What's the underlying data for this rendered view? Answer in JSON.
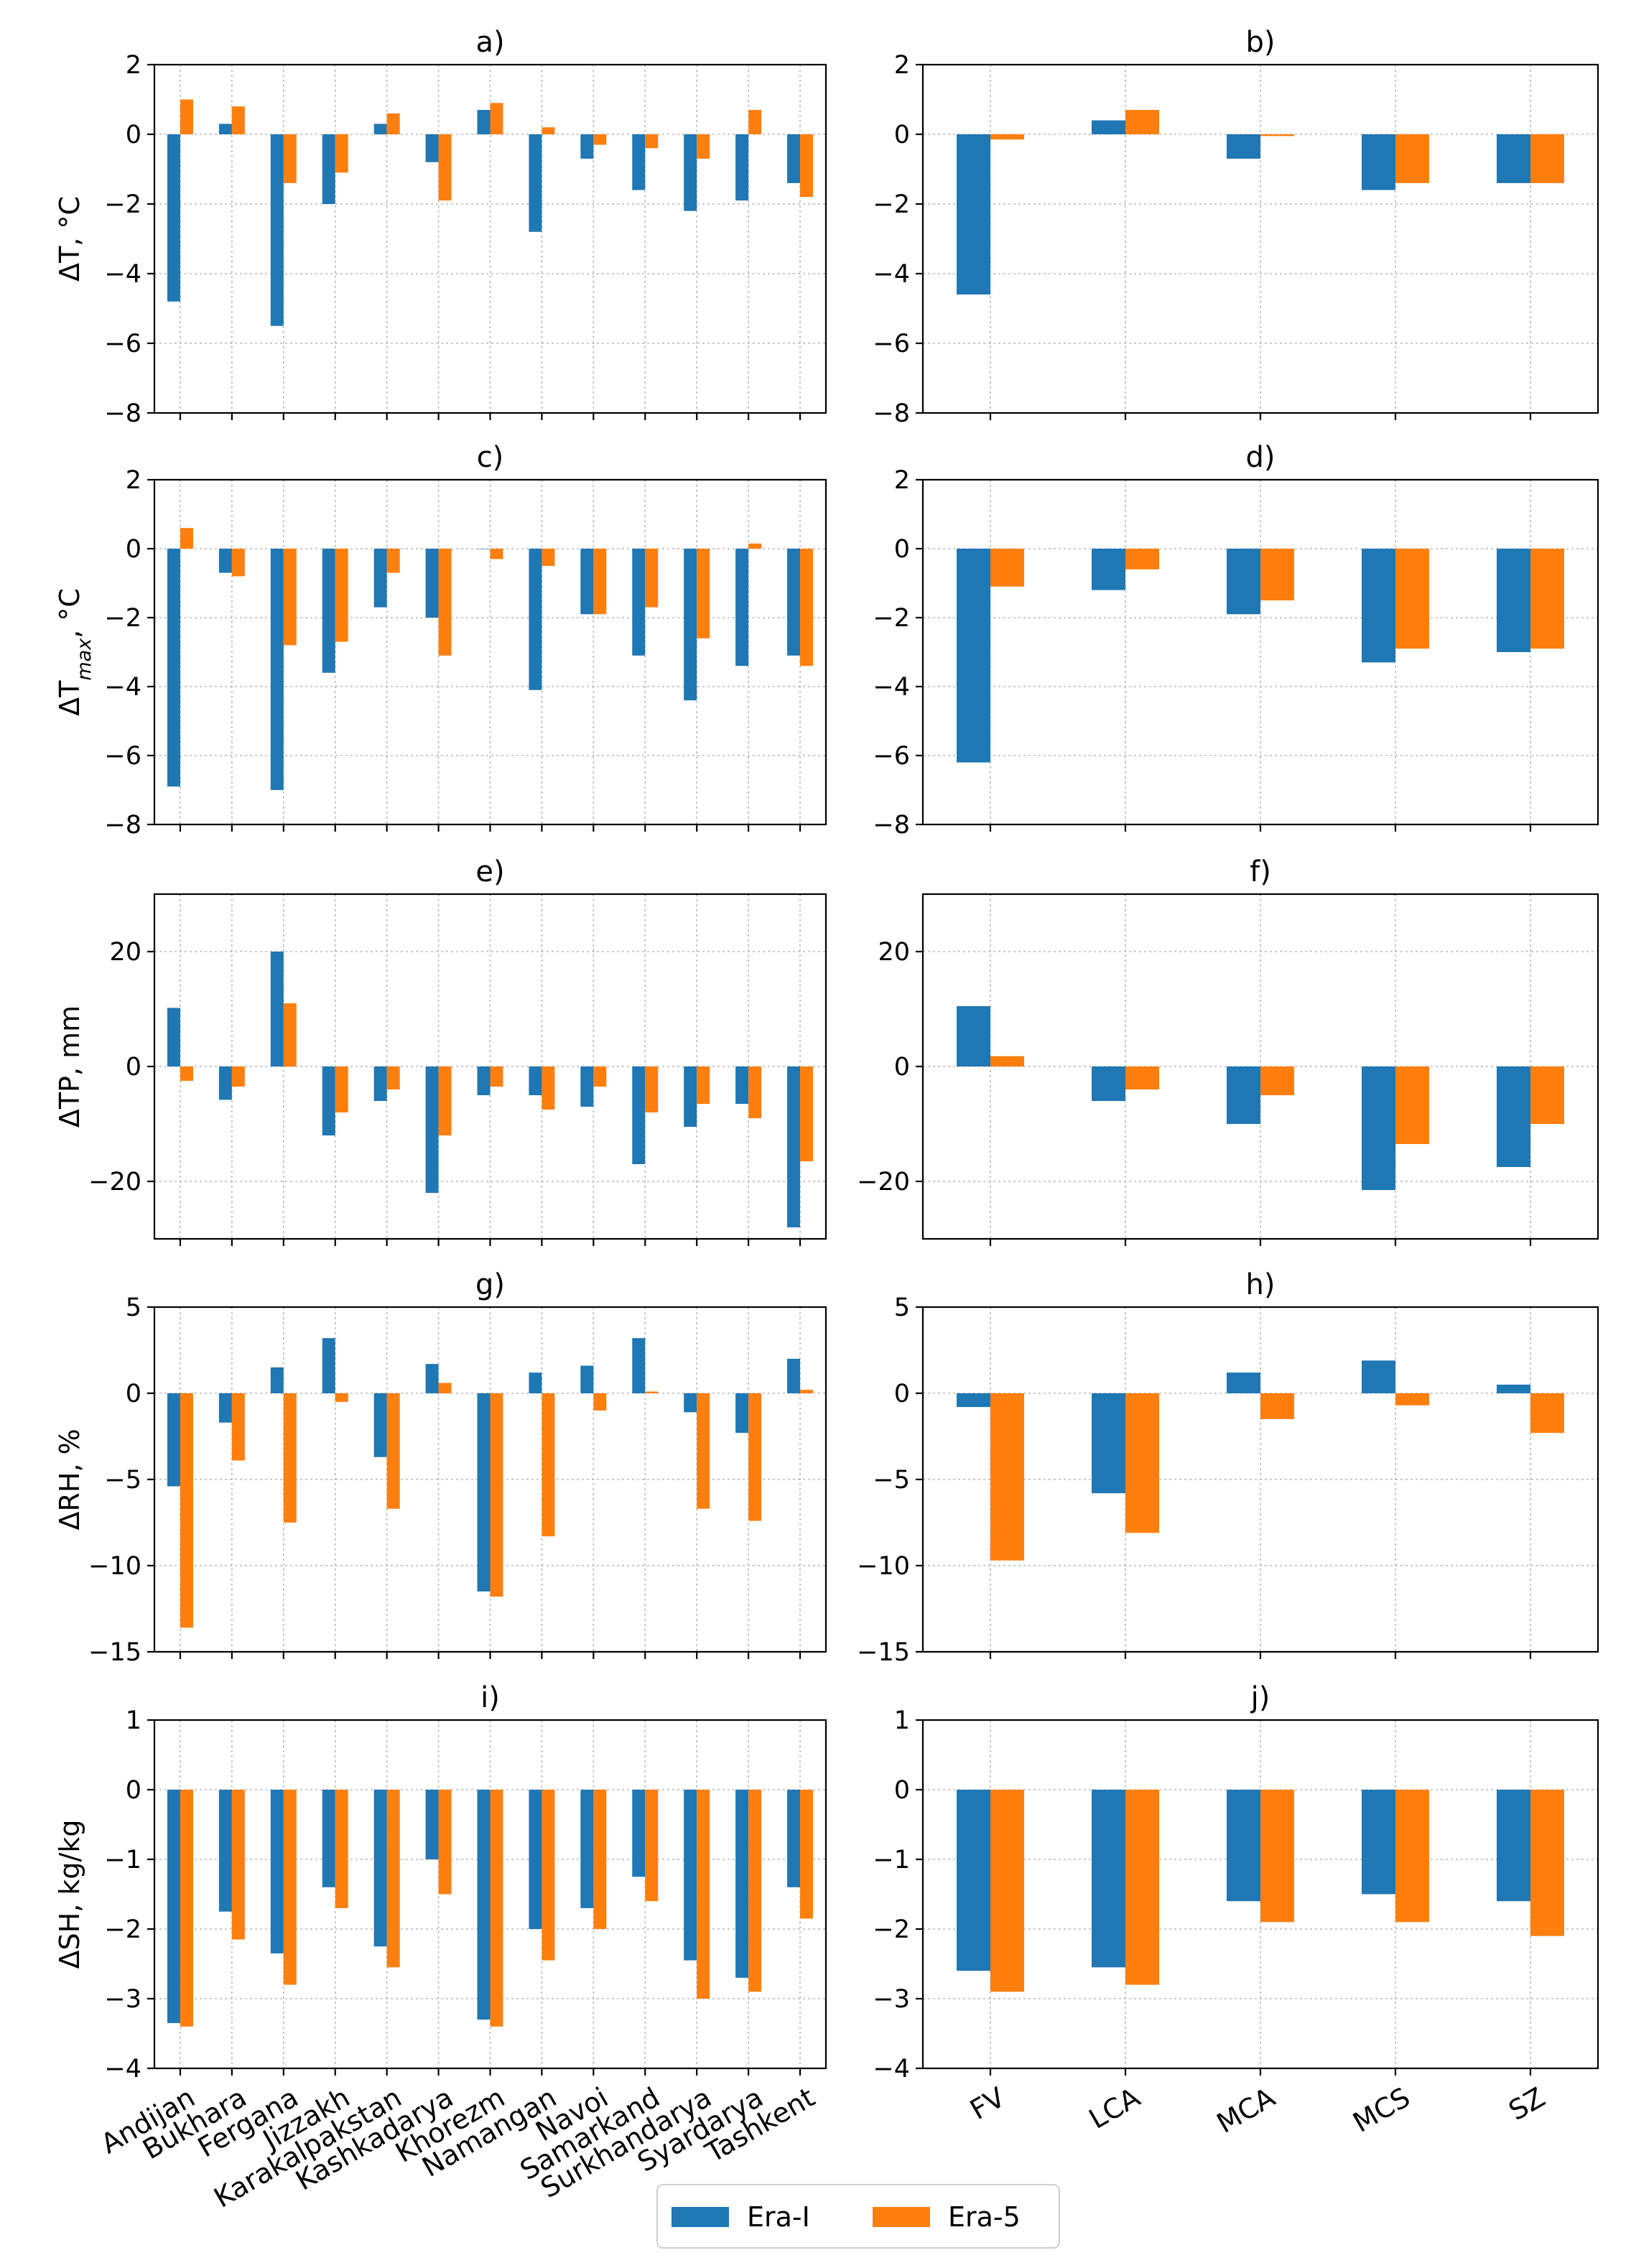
{
  "colors": {
    "era_i": "#1f77b4",
    "era_5": "#ff7f0e"
  },
  "legend": {
    "era_i_label": "Era-I",
    "era_5_label": "Era-5"
  },
  "chart_data": [
    {
      "id": "a",
      "title": "a)",
      "type": "bar",
      "ylabel": "ΔT, °C",
      "ylabel_sub": "",
      "ylim": [
        -8,
        2
      ],
      "yticks": [
        2,
        0,
        -2,
        -4,
        -6,
        -8
      ],
      "categories": [
        "Andijan",
        "Bukhara",
        "Fergana",
        "Jizzakh",
        "Karakalpakstan",
        "Kashkadarya",
        "Khorezm",
        "Namangan",
        "Navoi",
        "Samarkand",
        "Surkhandarya",
        "Syardarya",
        "Tashkent"
      ],
      "show_xlabels": false,
      "series": [
        {
          "name": "Era-I",
          "values": [
            -4.8,
            0.3,
            -5.5,
            -2.0,
            0.3,
            -0.8,
            0.7,
            -2.8,
            -0.7,
            -1.6,
            -2.2,
            -1.9,
            -1.4
          ]
        },
        {
          "name": "Era-5",
          "values": [
            1.0,
            0.8,
            -1.4,
            -1.1,
            0.6,
            -1.9,
            0.9,
            0.2,
            -0.3,
            -0.4,
            -0.7,
            0.7,
            -1.8
          ]
        }
      ]
    },
    {
      "id": "b",
      "title": "b)",
      "type": "bar",
      "ylabel": "",
      "ylabel_sub": "",
      "ylim": [
        -8,
        2
      ],
      "yticks": [
        2,
        0,
        -2,
        -4,
        -6,
        -8
      ],
      "categories": [
        "FV",
        "LCA",
        "MCA",
        "MCS",
        "SZ"
      ],
      "show_xlabels": false,
      "series": [
        {
          "name": "Era-I",
          "values": [
            -4.6,
            0.4,
            -0.7,
            -1.6,
            -1.4
          ]
        },
        {
          "name": "Era-5",
          "values": [
            -0.15,
            0.7,
            -0.05,
            -1.4,
            -1.4
          ]
        }
      ]
    },
    {
      "id": "c",
      "title": "c)",
      "type": "bar",
      "ylabel": "ΔT",
      "ylabel_sub": "max",
      "ylabel_suffix": ", °C",
      "ylim": [
        -8,
        2
      ],
      "yticks": [
        2,
        0,
        -2,
        -4,
        -6,
        -8
      ],
      "categories": [
        "Andijan",
        "Bukhara",
        "Fergana",
        "Jizzakh",
        "Karakalpakstan",
        "Kashkadarya",
        "Khorezm",
        "Namangan",
        "Navoi",
        "Samarkand",
        "Surkhandarya",
        "Syardarya",
        "Tashkent"
      ],
      "show_xlabels": false,
      "series": [
        {
          "name": "Era-I",
          "values": [
            -6.9,
            -0.7,
            -7.0,
            -3.6,
            -1.7,
            -2.0,
            0.0,
            -4.1,
            -1.9,
            -3.1,
            -4.4,
            -3.4,
            -3.1
          ]
        },
        {
          "name": "Era-5",
          "values": [
            0.6,
            -0.8,
            -2.8,
            -2.7,
            -0.7,
            -3.1,
            -0.3,
            -0.5,
            -1.9,
            -1.7,
            -2.6,
            0.15,
            -3.4
          ]
        }
      ]
    },
    {
      "id": "d",
      "title": "d)",
      "type": "bar",
      "ylabel": "",
      "ylabel_sub": "",
      "ylim": [
        -8,
        2
      ],
      "yticks": [
        2,
        0,
        -2,
        -4,
        -6,
        -8
      ],
      "categories": [
        "FV",
        "LCA",
        "MCA",
        "MCS",
        "SZ"
      ],
      "show_xlabels": false,
      "series": [
        {
          "name": "Era-I",
          "values": [
            -6.2,
            -1.2,
            -1.9,
            -3.3,
            -3.0
          ]
        },
        {
          "name": "Era-5",
          "values": [
            -1.1,
            -0.6,
            -1.5,
            -2.9,
            -2.9
          ]
        }
      ]
    },
    {
      "id": "e",
      "title": "e)",
      "type": "bar",
      "ylabel": "ΔTP, mm",
      "ylabel_sub": "",
      "ylim": [
        -30,
        30
      ],
      "yticks": [
        20,
        0,
        -20
      ],
      "categories": [
        "Andijan",
        "Bukhara",
        "Fergana",
        "Jizzakh",
        "Karakalpakstan",
        "Kashkadarya",
        "Khorezm",
        "Namangan",
        "Navoi",
        "Samarkand",
        "Surkhandarya",
        "Syardarya",
        "Tashkent"
      ],
      "show_xlabels": false,
      "series": [
        {
          "name": "Era-I",
          "values": [
            10.2,
            -5.8,
            20.0,
            -12.0,
            -6.0,
            -22.0,
            -5.0,
            -5.0,
            -7.0,
            -17.0,
            -10.5,
            -6.5,
            -28.0
          ]
        },
        {
          "name": "Era-5",
          "values": [
            -2.5,
            -3.5,
            11.0,
            -8.0,
            -4.0,
            -12.0,
            -3.5,
            -7.5,
            -3.5,
            -8.0,
            -6.5,
            -9.0,
            -16.5
          ]
        }
      ]
    },
    {
      "id": "f",
      "title": "f)",
      "type": "bar",
      "ylabel": "",
      "ylabel_sub": "",
      "ylim": [
        -30,
        30
      ],
      "yticks": [
        20,
        0,
        -20
      ],
      "categories": [
        "FV",
        "LCA",
        "MCA",
        "MCS",
        "SZ"
      ],
      "show_xlabels": false,
      "series": [
        {
          "name": "Era-I",
          "values": [
            10.5,
            -6.0,
            -10.0,
            -21.5,
            -17.5
          ]
        },
        {
          "name": "Era-5",
          "values": [
            1.8,
            -4.0,
            -5.0,
            -13.5,
            -10.0
          ]
        }
      ]
    },
    {
      "id": "g",
      "title": "g)",
      "type": "bar",
      "ylabel": "ΔRH, %",
      "ylabel_sub": "",
      "ylim": [
        -15,
        5
      ],
      "yticks": [
        5,
        0,
        -5,
        -10,
        -15
      ],
      "categories": [
        "Andijan",
        "Bukhara",
        "Fergana",
        "Jizzakh",
        "Karakalpakstan",
        "Kashkadarya",
        "Khorezm",
        "Namangan",
        "Navoi",
        "Samarkand",
        "Surkhandarya",
        "Syardarya",
        "Tashkent"
      ],
      "show_xlabels": false,
      "series": [
        {
          "name": "Era-I",
          "values": [
            -5.4,
            -1.7,
            1.5,
            3.2,
            -3.7,
            1.7,
            -11.5,
            1.2,
            1.6,
            3.2,
            -1.1,
            -2.3,
            2.0
          ]
        },
        {
          "name": "Era-5",
          "values": [
            -13.6,
            -3.9,
            -7.5,
            -0.5,
            -6.7,
            0.6,
            -11.8,
            -8.3,
            -1.0,
            0.1,
            -6.7,
            -7.4,
            0.2
          ]
        }
      ]
    },
    {
      "id": "h",
      "title": "h)",
      "type": "bar",
      "ylabel": "",
      "ylabel_sub": "",
      "ylim": [
        -15,
        5
      ],
      "yticks": [
        5,
        0,
        -5,
        -10,
        -15
      ],
      "categories": [
        "FV",
        "LCA",
        "MCA",
        "MCS",
        "SZ"
      ],
      "show_xlabels": false,
      "series": [
        {
          "name": "Era-I",
          "values": [
            -0.8,
            -5.8,
            1.2,
            1.9,
            0.5
          ]
        },
        {
          "name": "Era-5",
          "values": [
            -9.7,
            -8.1,
            -1.5,
            -0.7,
            -2.3
          ]
        }
      ]
    },
    {
      "id": "i",
      "title": "i)",
      "type": "bar",
      "ylabel": "ΔSH, kg/kg",
      "ylabel_sub": "",
      "ylim": [
        -4,
        1
      ],
      "yticks": [
        1,
        0,
        -1,
        -2,
        -3,
        -4
      ],
      "categories": [
        "Andijan",
        "Bukhara",
        "Fergana",
        "Jizzakh",
        "Karakalpakstan",
        "Kashkadarya",
        "Khorezm",
        "Namangan",
        "Navoi",
        "Samarkand",
        "Surkhandarya",
        "Syardarya",
        "Tashkent"
      ],
      "show_xlabels": true,
      "series": [
        {
          "name": "Era-I",
          "values": [
            -3.35,
            -1.75,
            -2.35,
            -1.4,
            -2.25,
            -1.0,
            -3.3,
            -2.0,
            -1.7,
            -1.25,
            -2.45,
            -2.7,
            -1.4
          ]
        },
        {
          "name": "Era-5",
          "values": [
            -3.4,
            -2.15,
            -2.8,
            -1.7,
            -2.55,
            -1.5,
            -3.4,
            -2.45,
            -2.0,
            -1.6,
            -3.0,
            -2.9,
            -1.85
          ]
        }
      ]
    },
    {
      "id": "j",
      "title": "j)",
      "type": "bar",
      "ylabel": "",
      "ylabel_sub": "",
      "ylim": [
        -4,
        1
      ],
      "yticks": [
        1,
        0,
        -1,
        -2,
        -3,
        -4
      ],
      "categories": [
        "FV",
        "LCA",
        "MCA",
        "MCS",
        "SZ"
      ],
      "show_xlabels": true,
      "series": [
        {
          "name": "Era-I",
          "values": [
            -2.6,
            -2.55,
            -1.6,
            -1.5,
            -1.6
          ]
        },
        {
          "name": "Era-5",
          "values": [
            -2.9,
            -2.8,
            -1.9,
            -1.9,
            -2.1
          ]
        }
      ]
    }
  ]
}
